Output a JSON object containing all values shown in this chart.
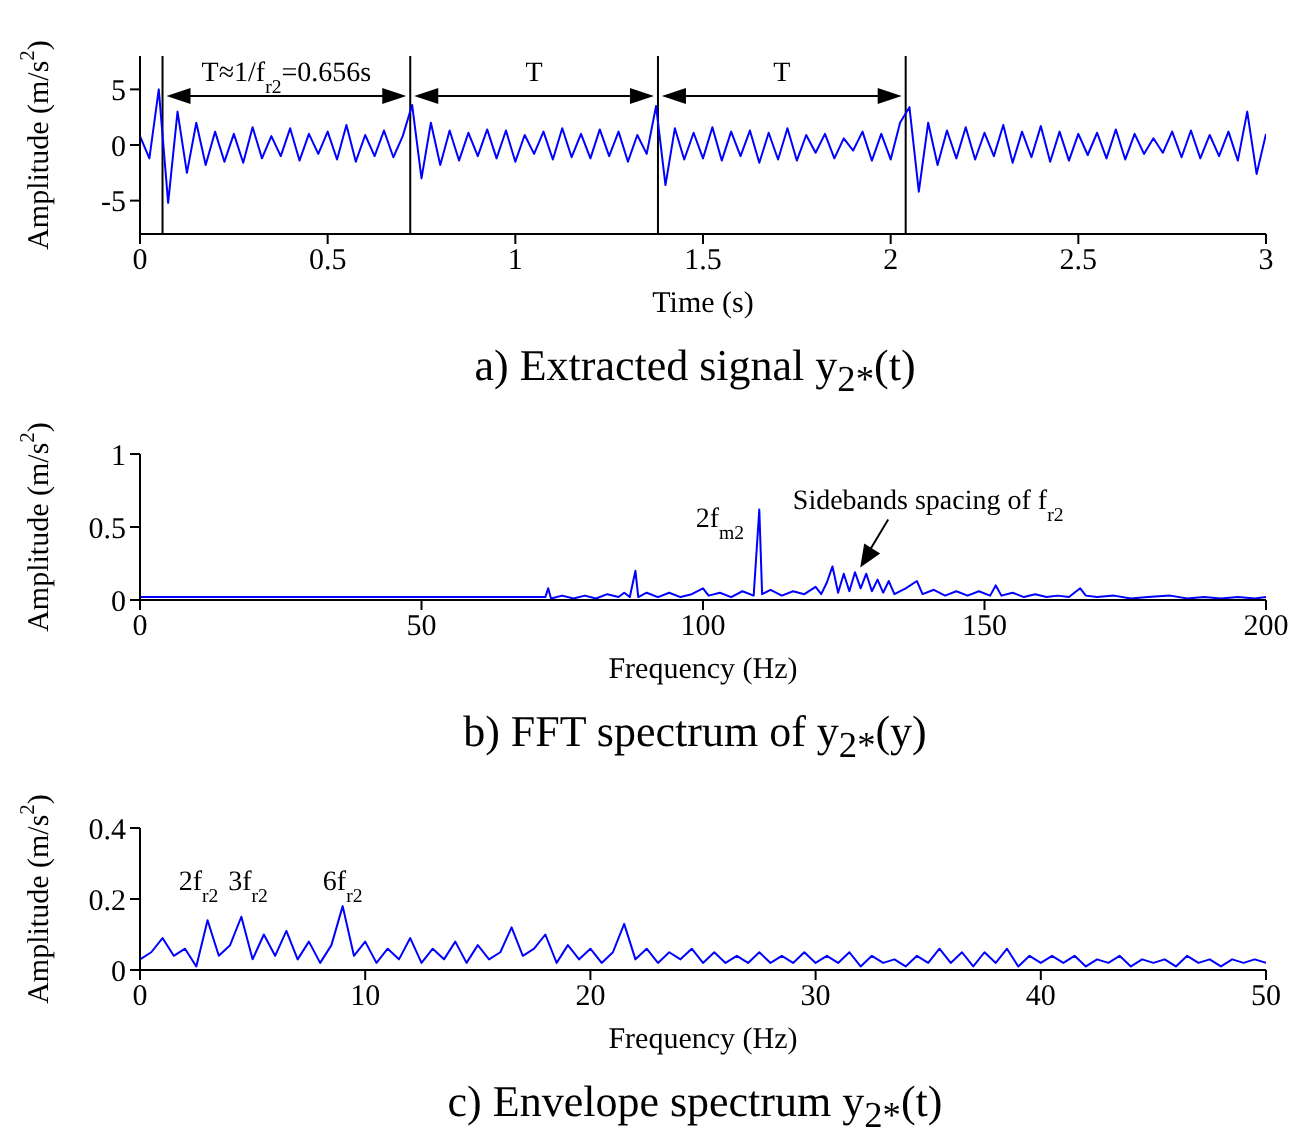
{
  "chart_data": [
    {
      "type": "line",
      "title": "a) Extracted signal y$_{2*}$(t)",
      "xlabel": "Time (s)",
      "ylabel": "Amplitude (m/s$^{2}$)",
      "color": "#0000ff",
      "xlim": [
        0,
        3
      ],
      "ylim": [
        -8,
        8
      ],
      "xticks": [
        0,
        0.5,
        1,
        1.5,
        2,
        2.5,
        3
      ],
      "yticks": [
        -5,
        0,
        5
      ],
      "ref_lines": [
        {
          "axis": "x",
          "value": 0.06,
          "color": "#000000"
        },
        {
          "axis": "x",
          "value": 0.72,
          "color": "#000000"
        },
        {
          "axis": "x",
          "value": 1.38,
          "color": "#000000"
        },
        {
          "axis": "x",
          "value": 2.04,
          "color": "#000000"
        }
      ],
      "annotations": [
        "T≈1/f$_{r2}$=0.656s",
        "T",
        "T"
      ],
      "x": [
        0,
        0.025,
        0.05,
        0.075,
        0.1,
        0.125,
        0.15,
        0.175,
        0.2,
        0.225,
        0.25,
        0.275,
        0.3,
        0.325,
        0.35,
        0.375,
        0.4,
        0.425,
        0.45,
        0.475,
        0.5,
        0.525,
        0.55,
        0.575,
        0.6,
        0.625,
        0.65,
        0.675,
        0.7,
        0.725,
        0.75,
        0.775,
        0.8,
        0.825,
        0.85,
        0.875,
        0.9,
        0.925,
        0.95,
        0.975,
        1,
        1.025,
        1.05,
        1.075,
        1.1,
        1.125,
        1.15,
        1.175,
        1.2,
        1.225,
        1.25,
        1.275,
        1.3,
        1.325,
        1.35,
        1.375,
        1.4,
        1.425,
        1.45,
        1.475,
        1.5,
        1.525,
        1.55,
        1.575,
        1.6,
        1.625,
        1.65,
        1.675,
        1.7,
        1.725,
        1.75,
        1.775,
        1.8,
        1.825,
        1.85,
        1.875,
        1.9,
        1.925,
        1.95,
        1.975,
        2,
        2.025,
        2.05,
        2.075,
        2.1,
        2.125,
        2.15,
        2.175,
        2.2,
        2.225,
        2.25,
        2.275,
        2.3,
        2.325,
        2.35,
        2.375,
        2.4,
        2.425,
        2.45,
        2.475,
        2.5,
        2.525,
        2.55,
        2.575,
        2.6,
        2.625,
        2.65,
        2.675,
        2.7,
        2.725,
        2.75,
        2.775,
        2.8,
        2.825,
        2.85,
        2.875,
        2.9,
        2.925,
        2.95,
        2.975,
        3
      ],
      "values": [
        0.8,
        -1.2,
        5,
        -5.2,
        3,
        -2.5,
        2,
        -1.8,
        1.2,
        -1.5,
        1,
        -1.6,
        1.6,
        -1.2,
        0.8,
        -1,
        1.5,
        -1.4,
        1,
        -0.8,
        1.2,
        -1.3,
        1.8,
        -1.5,
        0.9,
        -1,
        1.3,
        -1.1,
        0.8,
        3.6,
        -3,
        2,
        -1.8,
        1.3,
        -1.4,
        1.1,
        -1,
        1.4,
        -1.2,
        1.3,
        -1.5,
        0.9,
        -0.8,
        1.2,
        -1.3,
        1.5,
        -1.1,
        1,
        -1.2,
        1.4,
        -1,
        1.2,
        -1.5,
        0.9,
        -0.8,
        3.5,
        -3.6,
        1.5,
        -1.3,
        1.1,
        -1.2,
        1.6,
        -1.4,
        1.2,
        -1,
        1.3,
        -1.6,
        1.1,
        -1.3,
        1.5,
        -1.4,
        0.9,
        -0.7,
        1,
        -1.2,
        0.6,
        -0.5,
        1.2,
        -1.4,
        1,
        -1.3,
        2,
        3.4,
        -4.2,
        2,
        -1.8,
        1.3,
        -1.2,
        1.6,
        -1.3,
        1.1,
        -1,
        1.8,
        -1.6,
        1.2,
        -1.1,
        1.7,
        -1.5,
        1.2,
        -1.4,
        1,
        -0.9,
        1.1,
        -1.2,
        1.4,
        -1.3,
        1,
        -0.8,
        0.6,
        -0.7,
        1.2,
        -1.1,
        1.3,
        -1.2,
        0.9,
        -1,
        1.2,
        -1.4,
        3,
        -2.6,
        1
      ]
    },
    {
      "type": "line",
      "title": "b) FFT spectrum of y$_{2*}$(y)",
      "xlabel": "Frequency (Hz)",
      "ylabel": "Amplitude (m/s$^{2}$)",
      "color": "#0000ff",
      "xlim": [
        0,
        200
      ],
      "ylim": [
        0,
        1
      ],
      "xticks": [
        0,
        50,
        100,
        150,
        200
      ],
      "yticks": [
        0,
        0.5,
        1
      ],
      "annotations": [
        "2f$_{m2}$",
        "Sidebands spacing of f$_{r2}$"
      ],
      "x": [
        0,
        72,
        72.5,
        73,
        75,
        77,
        79,
        81,
        83,
        85,
        86,
        87,
        88,
        88.5,
        90,
        92,
        94,
        96,
        98,
        100,
        101,
        103,
        105,
        107,
        109,
        110,
        110.5,
        112,
        114,
        116,
        118,
        120,
        121,
        122,
        123,
        124,
        125,
        126,
        127,
        128,
        129,
        130,
        131,
        132,
        133,
        134,
        136,
        138,
        139,
        141,
        143,
        145,
        147,
        149,
        151,
        152,
        153,
        155,
        157,
        159,
        161,
        163,
        165,
        167,
        168,
        170,
        173,
        176,
        179,
        183,
        186,
        189,
        192,
        195,
        198,
        200
      ],
      "values": [
        0.02,
        0.02,
        0.08,
        0.01,
        0.03,
        0.01,
        0.03,
        0.01,
        0.04,
        0.02,
        0.05,
        0.02,
        0.2,
        0.02,
        0.05,
        0.02,
        0.05,
        0.02,
        0.04,
        0.08,
        0.03,
        0.05,
        0.02,
        0.06,
        0.03,
        0.62,
        0.04,
        0.07,
        0.03,
        0.06,
        0.04,
        0.09,
        0.04,
        0.12,
        0.23,
        0.05,
        0.18,
        0.06,
        0.19,
        0.08,
        0.18,
        0.06,
        0.14,
        0.05,
        0.13,
        0.04,
        0.08,
        0.13,
        0.04,
        0.07,
        0.03,
        0.06,
        0.03,
        0.06,
        0.03,
        0.1,
        0.03,
        0.05,
        0.02,
        0.04,
        0.02,
        0.03,
        0.02,
        0.08,
        0.03,
        0.02,
        0.03,
        0.01,
        0.02,
        0.03,
        0.01,
        0.02,
        0.01,
        0.02,
        0.01,
        0.02
      ]
    },
    {
      "type": "line",
      "title": "c) Envelope spectrum y$_{2*}$(t)",
      "xlabel": "Frequency (Hz)",
      "ylabel": "Amplitude (m/s$^{2}$)",
      "color": "#0000ff",
      "xlim": [
        0,
        50
      ],
      "ylim": [
        0,
        0.4
      ],
      "xticks": [
        0,
        10,
        20,
        30,
        40,
        50
      ],
      "yticks": [
        0,
        0.2,
        0.4
      ],
      "annotations": [
        "2f$_{r2}$",
        "3f$_{r2}$",
        "6f$_{r2}$"
      ],
      "x": [
        0,
        0.5,
        1,
        1.5,
        2,
        2.5,
        3,
        3.5,
        4,
        4.5,
        5,
        5.5,
        6,
        6.5,
        7,
        7.5,
        8,
        8.5,
        9,
        9.5,
        10,
        10.5,
        11,
        11.5,
        12,
        12.5,
        13,
        13.5,
        14,
        14.5,
        15,
        15.5,
        16,
        16.5,
        17,
        17.5,
        18,
        18.5,
        19,
        19.5,
        20,
        20.5,
        21,
        21.5,
        22,
        22.5,
        23,
        23.5,
        24,
        24.5,
        25,
        25.5,
        26,
        26.5,
        27,
        27.5,
        28,
        28.5,
        29,
        29.5,
        30,
        30.5,
        31,
        31.5,
        32,
        32.5,
        33,
        33.5,
        34,
        34.5,
        35,
        35.5,
        36,
        36.5,
        37,
        37.5,
        38,
        38.5,
        39,
        39.5,
        40,
        40.5,
        41,
        41.5,
        42,
        42.5,
        43,
        43.5,
        44,
        44.5,
        45,
        45.5,
        46,
        46.5,
        47,
        47.5,
        48,
        48.5,
        49,
        49.5,
        50
      ],
      "values": [
        0.03,
        0.05,
        0.09,
        0.04,
        0.06,
        0.01,
        0.14,
        0.04,
        0.07,
        0.15,
        0.03,
        0.1,
        0.04,
        0.11,
        0.03,
        0.08,
        0.02,
        0.07,
        0.18,
        0.04,
        0.08,
        0.02,
        0.06,
        0.03,
        0.09,
        0.02,
        0.06,
        0.03,
        0.08,
        0.02,
        0.07,
        0.03,
        0.05,
        0.12,
        0.04,
        0.06,
        0.1,
        0.02,
        0.07,
        0.03,
        0.06,
        0.02,
        0.05,
        0.13,
        0.03,
        0.06,
        0.02,
        0.05,
        0.03,
        0.06,
        0.02,
        0.05,
        0.02,
        0.04,
        0.02,
        0.05,
        0.02,
        0.04,
        0.02,
        0.05,
        0.02,
        0.04,
        0.02,
        0.05,
        0.01,
        0.04,
        0.02,
        0.03,
        0.01,
        0.04,
        0.02,
        0.06,
        0.02,
        0.05,
        0.01,
        0.05,
        0.02,
        0.06,
        0.01,
        0.04,
        0.02,
        0.04,
        0.02,
        0.04,
        0.01,
        0.03,
        0.02,
        0.04,
        0.01,
        0.03,
        0.02,
        0.03,
        0.01,
        0.04,
        0.02,
        0.03,
        0.01,
        0.03,
        0.02,
        0.03,
        0.02
      ]
    }
  ]
}
